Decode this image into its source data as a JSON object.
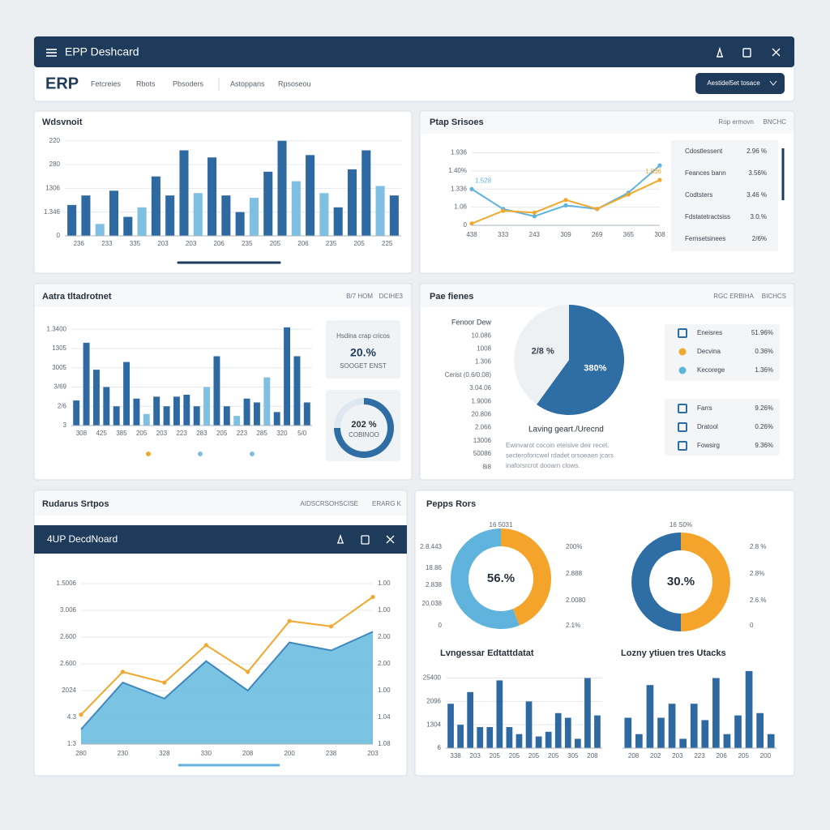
{
  "window": {
    "title": "EPP Deshcard",
    "brand": "ERP",
    "nav": [
      "Fetcreies",
      "Rbots",
      "Pbsoders",
      "Astoppans",
      "Rpsoseou"
    ],
    "button": "Aestidel5et tosace"
  },
  "list_p2": [
    {
      "label": "Cdostlessent",
      "value": "2.96 %"
    },
    {
      "label": "Feances bann",
      "value": "3.56%"
    },
    {
      "label": "Codtsters",
      "value": "3.46 %"
    },
    {
      "label": "Fdstatetractsiss",
      "value": "3.0.%"
    },
    {
      "label": "Fernsetsinees",
      "value": "2/6%"
    }
  ],
  "card_p3": {
    "title": "Hsdina crap cricos",
    "value": "20.%",
    "caption": "SOOGET ENST"
  },
  "legend_p4": [
    [
      {
        "label": "Eneisres",
        "value": "51.96%",
        "color": "#2f6ea5"
      },
      {
        "label": "Decvina",
        "value": "0.36%",
        "color": "#f0a830"
      },
      {
        "label": "Kecorege",
        "value": "1.36%",
        "color": "#5fb3dc"
      }
    ],
    [
      {
        "label": "Farrs",
        "value": "9.26%",
        "color": "#2f6ea5"
      },
      {
        "label": "Dratool",
        "value": "0.26%",
        "color": "#2f6ea5"
      },
      {
        "label": "Fowsirg",
        "value": "9.36%",
        "color": "#2f6ea5"
      }
    ]
  ],
  "chart_data": [
    {
      "type": "bar",
      "title": "Wdsvnoit",
      "categories": [
        "236",
        null,
        "233",
        null,
        "335",
        null,
        "203",
        null,
        "203",
        null,
        "206",
        null,
        "235",
        null,
        "205",
        null,
        "206",
        null,
        "235",
        null,
        "205",
        null,
        "225",
        null
      ],
      "values": [
        1.3,
        1.7,
        0.5,
        1.9,
        0.8,
        1.2,
        2.5,
        1.7,
        3.6,
        1.8,
        3.3,
        1.7,
        1.0,
        1.6,
        2.7,
        4.0,
        2.3,
        3.4,
        1.8,
        1.2,
        2.8,
        3.6,
        2.1,
        1.7
      ],
      "colors": [
        "#2e6aa1",
        "#2e6aa1",
        "#7fc0e2",
        "#2e6aa1",
        "#2e6aa1",
        "#7fc0e2",
        "#2e6aa1",
        "#2e6aa1",
        "#2e6aa1",
        "#7fc0e2",
        "#2e6aa1",
        "#2e6aa1",
        "#2e6aa1",
        "#7fc0e2",
        "#2e6aa1",
        "#2e6aa1",
        "#7fc0e2",
        "#2e6aa1",
        "#7fc0e2",
        "#2e6aa1",
        "#2e6aa1",
        "#2e6aa1",
        "#7fc0e2",
        "#2e6aa1"
      ],
      "ylim": [
        0,
        4.4
      ],
      "yticks": [
        0,
        {
          "value": 1,
          "label": "1.346"
        },
        {
          "value": 2,
          "label": "1306"
        },
        {
          "value": 3,
          "label": "280"
        },
        {
          "value": 4,
          "label": "220"
        }
      ],
      "grid": true
    },
    {
      "type": "line",
      "title": "Ptap Srisoes",
      "header_right": [
        "Rop ermovn",
        "BNCHC"
      ],
      "categories": [
        "438",
        "333",
        "243",
        "309",
        "269",
        "365",
        "308"
      ],
      "series": [
        {
          "color": "#5fb3dc",
          "values": [
            2.0,
            0.9,
            0.5,
            1.1,
            0.9,
            1.8,
            3.3
          ],
          "markers": true
        },
        {
          "color": "#f0a830",
          "values": [
            0.1,
            0.8,
            0.7,
            1.4,
            0.9,
            1.7,
            2.5
          ],
          "markers": true
        }
      ],
      "annotations": [
        "1.528",
        "1.836"
      ],
      "ylim": [
        0,
        4.2
      ],
      "yticks": [
        0,
        {
          "value": 1,
          "label": "1.06"
        },
        {
          "value": 2,
          "label": "1.336"
        },
        {
          "value": 3,
          "label": "1.40%"
        },
        {
          "value": 4,
          "label": "1.936"
        }
      ],
      "grid": true
    },
    {
      "type": "bar",
      "title": "Aatra tltadrotnet",
      "header_right": [
        "B/7 HOM",
        "DCIHE3"
      ],
      "categories": [
        "308",
        null,
        "425",
        null,
        "385",
        null,
        "205",
        null,
        "203",
        null,
        "223",
        null,
        "283",
        null,
        "205",
        null,
        "223",
        null,
        "285",
        null,
        "320",
        null,
        "5/0",
        null
      ],
      "values": [
        1.3,
        4.3,
        2.9,
        2.0,
        1.0,
        3.3,
        1.4,
        0.6,
        1.5,
        1.0,
        1.5,
        1.6,
        1.0,
        2.0,
        3.6,
        1.0,
        0.5,
        1.4,
        1.2,
        2.5,
        0.7,
        5.1,
        3.6,
        1.2
      ],
      "colors": [
        "#2e6aa1",
        "#2e6aa1",
        "#2e6aa1",
        "#2e6aa1",
        "#2e6aa1",
        "#2e6aa1",
        "#2e6aa1",
        "#7fc0e2",
        "#2e6aa1",
        "#2e6aa1",
        "#2e6aa1",
        "#2e6aa1",
        "#2e6aa1",
        "#7fc0e2",
        "#2e6aa1",
        "#2e6aa1",
        "#7fc0e2",
        "#2e6aa1",
        "#2e6aa1",
        "#7fc0e2",
        "#2e6aa1",
        "#2e6aa1",
        "#2e6aa1",
        "#2e6aa1"
      ],
      "legend_colors": [
        "#f0a830",
        "#7fc0e2",
        "#7fc0e2"
      ],
      "ylim": [
        0,
        5.6
      ],
      "yticks": [
        {
          "value": 0,
          "label": "3"
        },
        {
          "value": 1,
          "label": "2/6"
        },
        {
          "value": 2,
          "label": "3/69"
        },
        {
          "value": 3,
          "label": "3005"
        },
        {
          "value": 4,
          "label": "1305"
        },
        {
          "value": 5,
          "label": "1.3400"
        }
      ],
      "grid": true
    },
    {
      "type": "donut",
      "center_label": "202 %",
      "sub_label": "COBINOO",
      "values": [
        75,
        25
      ],
      "colors": [
        "#2f6ea5",
        "#dfe8f0"
      ]
    },
    {
      "type": "pie",
      "title": "Pae fienes",
      "header_right": [
        "RGC ERBIHA",
        "BICHCS"
      ],
      "labels": [
        "380%",
        "2/8 %"
      ],
      "values": [
        60,
        40
      ],
      "colors": [
        "#2f6ea5",
        "#eef1f4"
      ],
      "left_labels": [
        "Fenoor Dew",
        "10.086",
        "1008",
        "1.306",
        "Cerist (0.6/0.08)",
        "3.04.06",
        "1.9006",
        "20.806",
        "2.066",
        "13006",
        "50086",
        "8i8"
      ],
      "caption": "Laving geart./Urecnd",
      "text_lines": [
        "Ewinvarot cocoin eteisive deir recet.",
        "secteroforicwel rdadet orsoeaen jcars",
        "inaforsrcrot dooarn clows."
      ]
    },
    {
      "type": "area",
      "title": "Rudarus Srtpos",
      "header_right": [
        "AIDSCRSOHSCISE",
        "ERARG K"
      ],
      "window_title": "4UP DecdNoard",
      "categories": [
        "280",
        "230",
        "328",
        "330",
        "208",
        "200",
        "238",
        "203"
      ],
      "series": [
        {
          "color": "#6cbde0",
          "values": [
            0.55,
            2.3,
            1.7,
            3.1,
            2.0,
            3.8,
            3.5,
            4.2
          ],
          "area": true
        },
        {
          "color": "#f0a830",
          "values": [
            1.1,
            2.7,
            2.3,
            3.7,
            2.7,
            4.6,
            4.4,
            5.5
          ],
          "markers": true,
          "axis": "y2"
        }
      ],
      "ylim": [
        0,
        6
      ],
      "yticks": [
        {
          "value": 0,
          "label": "1:3"
        },
        {
          "value": 1,
          "label": "4.3"
        },
        {
          "value": 2,
          "label": "2024"
        },
        {
          "value": 3,
          "label": "2.600"
        },
        {
          "value": 4,
          "label": "2.600"
        },
        {
          "value": 5,
          "label": "3.006"
        },
        {
          "value": 6,
          "label": "1.5006"
        }
      ],
      "y2lim": [
        0,
        6
      ],
      "y2ticks": [
        {
          "value": 0,
          "label": "1.08"
        },
        {
          "value": 1,
          "label": "1.04"
        },
        {
          "value": 2,
          "label": "1.00"
        },
        {
          "value": 3,
          "label": "2.00"
        },
        {
          "value": 4,
          "label": "2.00"
        },
        {
          "value": 5,
          "label": "1.00"
        },
        {
          "value": 6,
          "label": "1.00"
        }
      ],
      "grid": true
    },
    {
      "type": "donut",
      "title": "Pepps Rors",
      "center_label": "56.%",
      "values": [
        44,
        56
      ],
      "colors": [
        "#f4a42a",
        "#5fb3dc"
      ],
      "top_label": "16 5031",
      "left_labels": [
        "2.8.443",
        "18.86",
        "2.838",
        "20.038",
        "0"
      ],
      "right_labels": [
        "200%",
        "2.888",
        "2.0080",
        "2.1%"
      ]
    },
    {
      "type": "donut",
      "center_label": "30.%",
      "values": [
        50,
        50
      ],
      "colors": [
        "#f4a42a",
        "#2f6ea5"
      ],
      "top_label": "16 S0%",
      "right_labels": [
        "2.8 %",
        "2.8%",
        "2.6.%",
        "0"
      ]
    },
    {
      "type": "bar",
      "title": "Lvngessar Edtattdatat",
      "categories": [
        "338",
        null,
        "203",
        null,
        "205",
        null,
        "205",
        null,
        "205",
        null,
        "205",
        null,
        "305",
        null,
        "208",
        null
      ],
      "values": [
        1.9,
        1.0,
        2.4,
        0.9,
        0.9,
        2.9,
        0.9,
        0.6,
        2.0,
        0.5,
        0.7,
        1.5,
        1.3,
        0.4,
        3.0,
        1.4
      ],
      "color": "#2e6aa1",
      "ylim": [
        0,
        3.4
      ],
      "yticks": [
        {
          "value": 0,
          "label": "6"
        },
        {
          "value": 1,
          "label": "1304"
        },
        {
          "value": 2,
          "label": "2096"
        },
        {
          "value": 3,
          "label": "25400"
        }
      ],
      "grid": true
    },
    {
      "type": "bar",
      "title": "Lozny ytiuen tres Utacks",
      "categories": [
        "208",
        null,
        "202",
        null,
        "203",
        null,
        "223",
        null,
        "206",
        null,
        "205",
        null,
        "200",
        null
      ],
      "values": [
        1.3,
        0.6,
        2.7,
        1.3,
        1.9,
        0.4,
        1.9,
        1.2,
        3.0,
        0.6,
        1.4,
        3.3,
        1.5,
        0.6
      ],
      "color": "#2e6aa1",
      "ylim": [
        0,
        3.4
      ],
      "grid": true
    }
  ]
}
